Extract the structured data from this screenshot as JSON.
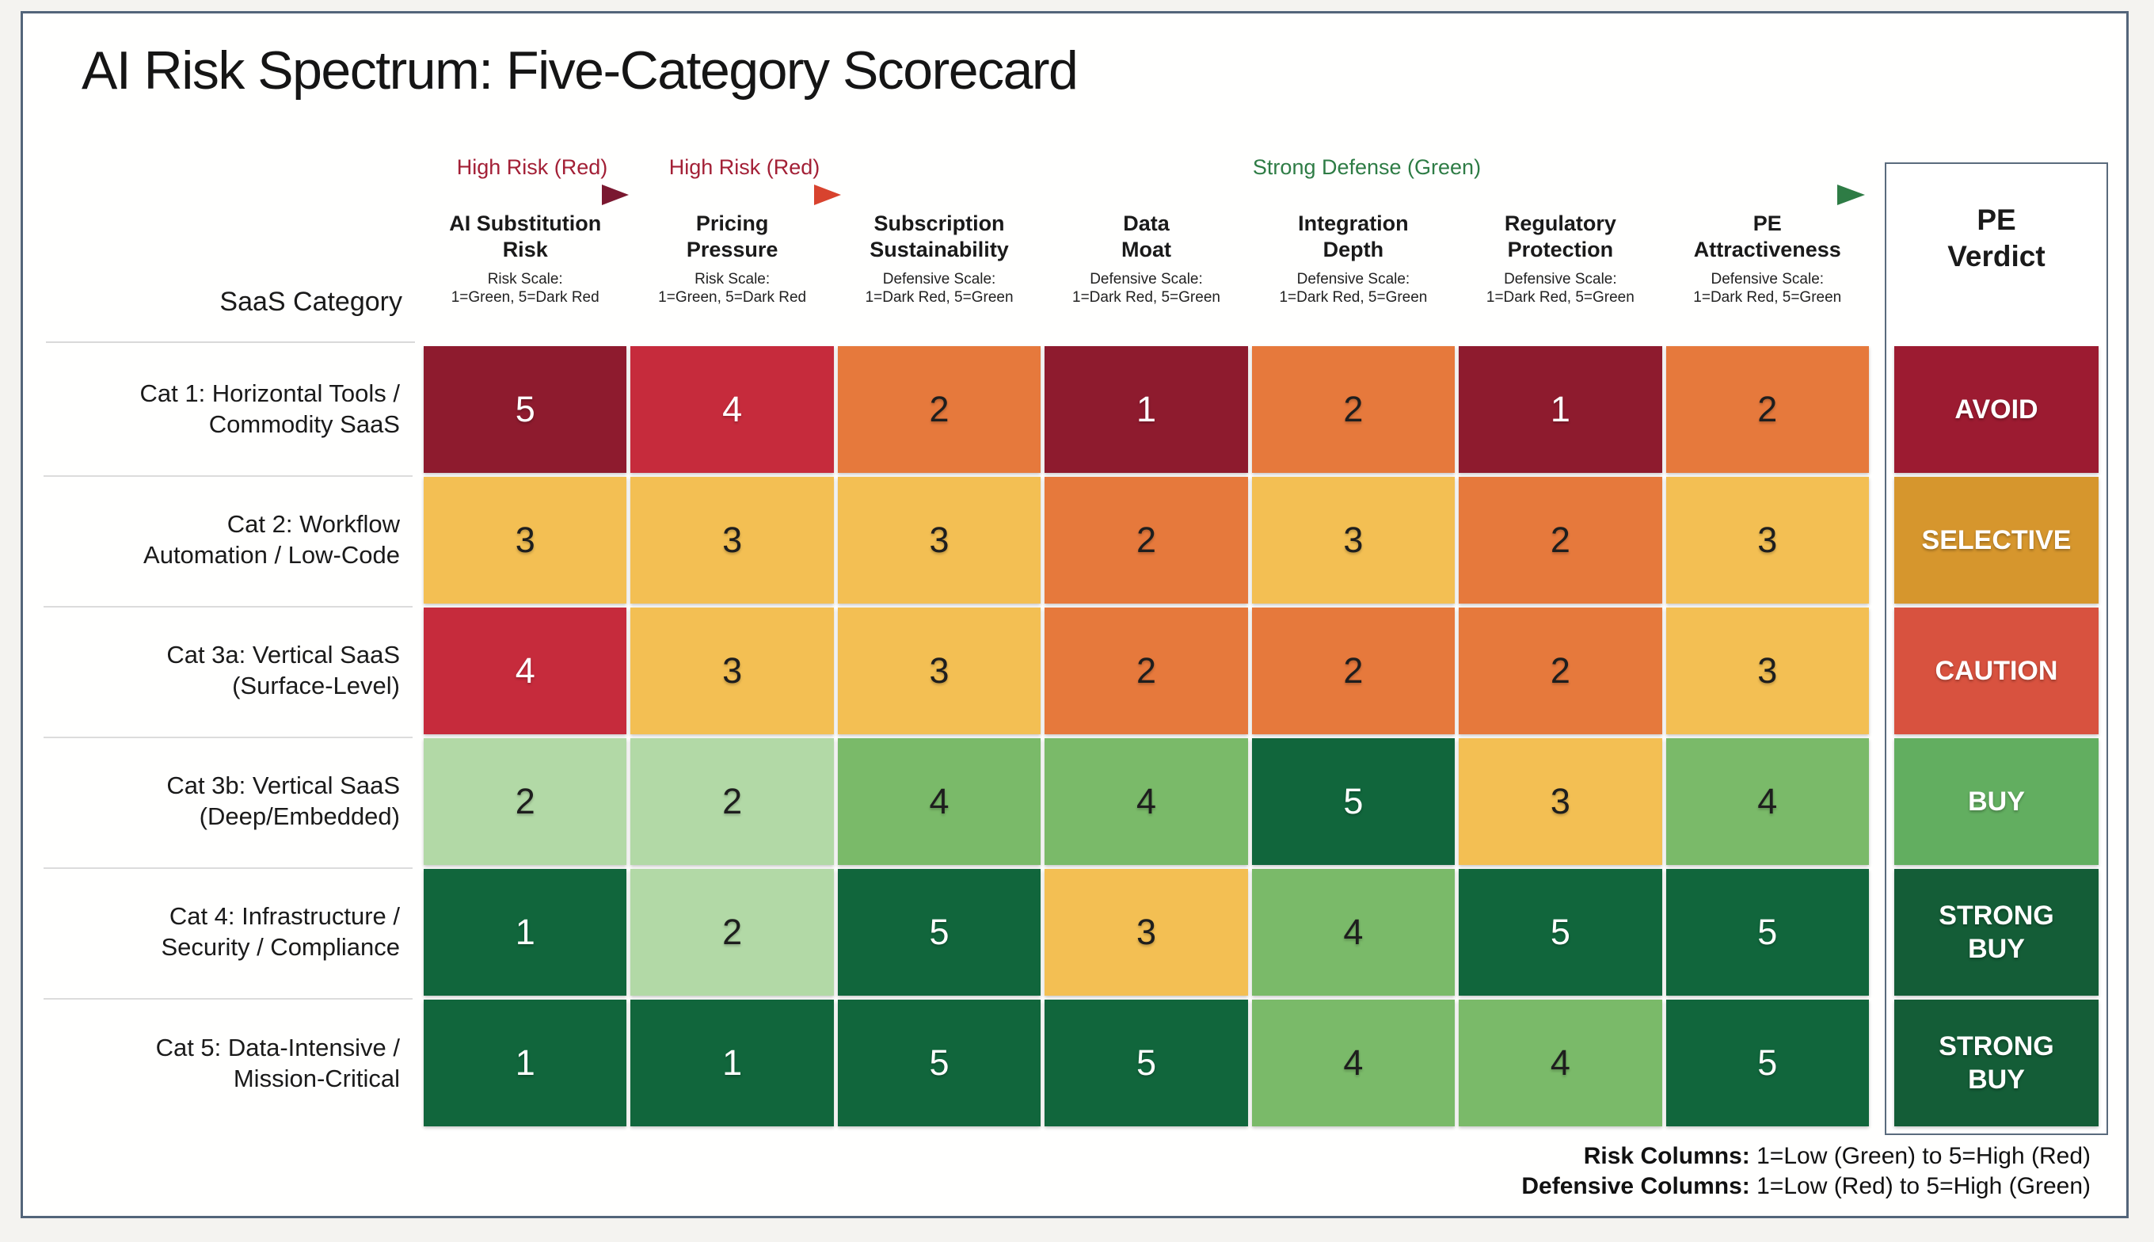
{
  "title": "AI Risk Spectrum: Five-Category Scorecard",
  "legend_arrows": [
    {
      "label": "High Risk (Red)",
      "text_color": "#A32036",
      "gradient": [
        "#C23A50",
        "#6E1426"
      ],
      "head_color": "#7A1830"
    },
    {
      "label": "High Risk (Red)",
      "text_color": "#A32036",
      "gradient": [
        "#E5A04B",
        "#D84B30"
      ],
      "head_color": "#D8432E"
    },
    {
      "label": "Strong Defense (Green)",
      "text_color": "#2E7C45",
      "gradient": [
        "#BCDDAF",
        "#2E7C45"
      ],
      "head_color": "#2E7C45"
    }
  ],
  "table": {
    "row_header_label": "SaaS Category",
    "columns": [
      {
        "title_lines": [
          "AI Substitution",
          "Risk"
        ],
        "scale_lines": [
          "Risk Scale:",
          "1=Green, 5=Dark Red"
        ],
        "type": "risk"
      },
      {
        "title_lines": [
          "Pricing",
          "Pressure"
        ],
        "scale_lines": [
          "Risk Scale:",
          "1=Green, 5=Dark Red"
        ],
        "type": "risk"
      },
      {
        "title_lines": [
          "Subscription",
          "Sustainability"
        ],
        "scale_lines": [
          "Defensive Scale:",
          "1=Dark Red, 5=Green"
        ],
        "type": "defensive"
      },
      {
        "title_lines": [
          "Data",
          "Moat"
        ],
        "scale_lines": [
          "Defensive Scale:",
          "1=Dark Red, 5=Green"
        ],
        "type": "defensive"
      },
      {
        "title_lines": [
          "Integration",
          "Depth"
        ],
        "scale_lines": [
          "Defensive Scale:",
          "1=Dark Red, 5=Green"
        ],
        "type": "defensive"
      },
      {
        "title_lines": [
          "Regulatory",
          "Protection"
        ],
        "scale_lines": [
          "Defensive Scale:",
          "1=Dark Red, 5=Green"
        ],
        "type": "defensive"
      },
      {
        "title_lines": [
          "PE",
          "Attractiveness"
        ],
        "scale_lines": [
          "Defensive Scale:",
          "1=Dark Red, 5=Green"
        ],
        "type": "defensive"
      }
    ],
    "rows": [
      {
        "label_lines": [
          "Cat 1: Horizontal Tools /",
          "Commodity SaaS"
        ],
        "values": [
          5,
          4,
          2,
          1,
          2,
          1,
          2
        ]
      },
      {
        "label_lines": [
          "Cat 2: Workflow",
          "Automation / Low-Code"
        ],
        "values": [
          3,
          3,
          3,
          2,
          3,
          2,
          3
        ]
      },
      {
        "label_lines": [
          "Cat 3a: Vertical SaaS",
          "(Surface-Level)"
        ],
        "values": [
          4,
          3,
          3,
          2,
          2,
          2,
          3
        ]
      },
      {
        "label_lines": [
          "Cat 3b: Vertical SaaS",
          "(Deep/Embedded)"
        ],
        "values": [
          2,
          2,
          4,
          4,
          5,
          3,
          4
        ]
      },
      {
        "label_lines": [
          "Cat 4: Infrastructure /",
          "Security / Compliance"
        ],
        "values": [
          1,
          2,
          5,
          3,
          4,
          5,
          5
        ]
      },
      {
        "label_lines": [
          "Cat 5: Data-Intensive /",
          "Mission-Critical"
        ],
        "values": [
          1,
          1,
          5,
          5,
          4,
          4,
          5
        ]
      }
    ]
  },
  "verdict_column": {
    "title_lines": [
      "PE",
      "Verdict"
    ],
    "verdicts": [
      {
        "label": "AVOID",
        "color": "#9C1B31"
      },
      {
        "label": "SELECTIVE",
        "color": "#D6962D"
      },
      {
        "label": "CAUTION",
        "color": "#D8523F"
      },
      {
        "label": "BUY",
        "color": "#62AE60"
      },
      {
        "label": "STRONG BUY",
        "color": "#145D37"
      },
      {
        "label": "STRONG BUY",
        "color": "#145D37"
      }
    ]
  },
  "footer": {
    "lines": [
      {
        "bold": "Risk Columns:",
        "rest": " 1=Low (Green) to 5=High (Red)"
      },
      {
        "bold": "Defensive Columns:",
        "rest": " 1=Low (Red) to 5=High (Green)"
      }
    ]
  },
  "palette": {
    "maroon": "#8E1B2E",
    "red": "#C62B3C",
    "orange": "#E6793C",
    "amber": "#F3BF53",
    "light_green": "#B2D9A6",
    "mid_green": "#7ABA69",
    "dark_green": "#11663C",
    "text_dark": "#1E1E1E",
    "text_light": "#FFFFFF",
    "card_border": "#53657A",
    "page_background": "#F4F3F0"
  },
  "chart_data": {
    "type": "heatmap",
    "title": "AI Risk Spectrum: Five-Category Scorecard",
    "row_axis_label": "SaaS Category",
    "columns": [
      "AI Substitution Risk",
      "Pricing Pressure",
      "Subscription Sustainability",
      "Data Moat",
      "Integration Depth",
      "Regulatory Protection",
      "PE Attractiveness"
    ],
    "column_types": [
      "risk",
      "risk",
      "defensive",
      "defensive",
      "defensive",
      "defensive",
      "defensive"
    ],
    "column_scale_notes": [
      "Risk Scale: 1=Green, 5=Dark Red",
      "Risk Scale: 1=Green, 5=Dark Red",
      "Defensive Scale: 1=Dark Red, 5=Green",
      "Defensive Scale: 1=Dark Red, 5=Green",
      "Defensive Scale: 1=Dark Red, 5=Green",
      "Defensive Scale: 1=Dark Red, 5=Green",
      "Defensive Scale: 1=Dark Red, 5=Green"
    ],
    "rows": [
      "Cat 1: Horizontal Tools / Commodity SaaS",
      "Cat 2: Workflow Automation / Low-Code",
      "Cat 3a: Vertical SaaS (Surface-Level)",
      "Cat 3b: Vertical SaaS (Deep/Embedded)",
      "Cat 4: Infrastructure / Security / Compliance",
      "Cat 5: Data-Intensive / Mission-Critical"
    ],
    "values": [
      [
        5,
        4,
        2,
        1,
        2,
        1,
        2
      ],
      [
        3,
        3,
        3,
        2,
        3,
        2,
        3
      ],
      [
        4,
        3,
        3,
        2,
        2,
        2,
        3
      ],
      [
        2,
        2,
        4,
        4,
        5,
        3,
        4
      ],
      [
        1,
        2,
        5,
        3,
        4,
        5,
        5
      ],
      [
        1,
        1,
        5,
        5,
        4,
        4,
        5
      ]
    ],
    "verdicts": [
      "AVOID",
      "SELECTIVE",
      "CAUTION",
      "BUY",
      "STRONG BUY",
      "STRONG BUY"
    ],
    "value_range": [
      1,
      5
    ],
    "legend_annotations": [
      "High Risk (Red)",
      "High Risk (Red)",
      "Strong Defense (Green)"
    ],
    "footnotes": [
      "Risk Columns: 1=Low (Green) to 5=High (Red)",
      "Defensive Columns: 1=Low (Red) to 5=High (Green)"
    ]
  }
}
